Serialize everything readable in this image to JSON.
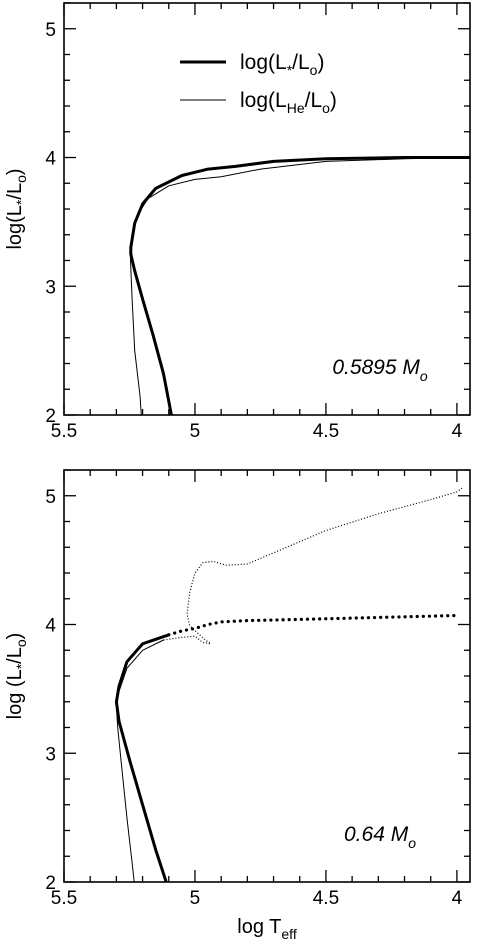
{
  "chart_data": [
    {
      "type": "line",
      "xlabel": "",
      "ylabel": {
        "main": "log(L",
        "sub1": "*",
        "mid": "/L",
        "sub2": "o",
        "end": ")"
      },
      "annotation": {
        "main": "0.5895 M",
        "sub": "o"
      },
      "xlim": [
        5.5,
        3.95
      ],
      "ylim": [
        2,
        5.2
      ],
      "x_ticks": [
        5.5,
        5,
        4.5,
        4
      ],
      "x_tick_labels": [
        "5.5",
        "5",
        "4.5",
        "4"
      ],
      "y_ticks": [
        2,
        3,
        4,
        5
      ],
      "y_tick_labels": [
        "2",
        "3",
        "4",
        "5"
      ],
      "legend": {
        "position": "top-center",
        "entries": [
          {
            "main": "log(L",
            "sub1": "*",
            "mid": "/L",
            "sub2": "o",
            "end": ")",
            "style": "thick"
          },
          {
            "main": "log(L",
            "sub1": "He",
            "mid": "/L",
            "sub2": "o",
            "end": ")",
            "style": "thin"
          }
        ]
      },
      "series": [
        {
          "name": "log(L*/Lo)",
          "style": "thick",
          "points": [
            [
              3.95,
              4.0
            ],
            [
              4.2,
              4.0
            ],
            [
              4.5,
              3.99
            ],
            [
              4.7,
              3.97
            ],
            [
              4.85,
              3.93
            ],
            [
              4.95,
              3.91
            ],
            [
              5.05,
              3.86
            ],
            [
              5.15,
              3.76
            ],
            [
              5.2,
              3.64
            ],
            [
              5.23,
              3.49
            ],
            [
              5.245,
              3.3
            ],
            [
              5.245,
              3.25
            ],
            [
              5.23,
              3.12
            ],
            [
              5.2,
              2.9
            ],
            [
              5.16,
              2.62
            ],
            [
              5.12,
              2.32
            ],
            [
              5.09,
              2.0
            ]
          ]
        },
        {
          "name": "log(LHe/Lo)",
          "style": "thin",
          "points": [
            [
              3.98,
              4.0
            ],
            [
              4.2,
              3.99
            ],
            [
              4.5,
              3.97
            ],
            [
              4.75,
              3.91
            ],
            [
              4.9,
              3.85
            ],
            [
              5.0,
              3.83
            ],
            [
              5.1,
              3.78
            ],
            [
              5.18,
              3.68
            ],
            [
              5.22,
              3.55
            ],
            [
              5.24,
              3.4
            ],
            [
              5.247,
              3.28
            ],
            [
              5.246,
              3.2
            ],
            [
              5.24,
              2.9
            ],
            [
              5.23,
              2.5
            ],
            [
              5.21,
              2.15
            ],
            [
              5.205,
              2.0
            ]
          ]
        }
      ]
    },
    {
      "type": "line",
      "xlabel": {
        "main": "log T",
        "sub": "eff"
      },
      "ylabel": {
        "main": "log (L",
        "sub1": "*",
        "mid": "/L",
        "sub2": "o",
        "end": ")"
      },
      "annotation": {
        "main": "0.64 M",
        "sub": "o"
      },
      "xlim": [
        5.5,
        3.95
      ],
      "ylim": [
        2,
        5.2
      ],
      "x_ticks": [
        5.5,
        5,
        4.5,
        4
      ],
      "x_tick_labels": [
        "5.5",
        "5",
        "4.5",
        "4"
      ],
      "y_ticks": [
        2,
        3,
        4,
        5
      ],
      "y_tick_labels": [
        "2",
        "3",
        "4",
        "5"
      ],
      "series": [
        {
          "name": "log(L*/Lo)",
          "style": "thick",
          "points": [
            [
              5.1,
              3.92
            ],
            [
              5.2,
              3.85
            ],
            [
              5.26,
              3.71
            ],
            [
              5.29,
              3.52
            ],
            [
              5.3,
              3.4
            ],
            [
              5.29,
              3.25
            ],
            [
              5.25,
              2.95
            ],
            [
              5.2,
              2.6
            ],
            [
              5.15,
              2.25
            ],
            [
              5.11,
              2.0
            ]
          ]
        },
        {
          "name": "log(L*/Lo)",
          "style": "dotted-thick",
          "points": [
            [
              5.1,
              3.92
            ],
            [
              5.05,
              3.95
            ],
            [
              5.0,
              3.97
            ],
            [
              4.95,
              4.0
            ],
            [
              4.9,
              4.02
            ],
            [
              4.8,
              4.03
            ],
            [
              4.6,
              4.04
            ],
            [
              4.4,
              4.05
            ],
            [
              4.2,
              4.06
            ],
            [
              4.0,
              4.07
            ]
          ]
        },
        {
          "name": "log(LHe/Lo)",
          "style": "thin",
          "points": [
            [
              5.12,
              3.88
            ],
            [
              5.2,
              3.8
            ],
            [
              5.26,
              3.66
            ],
            [
              5.29,
              3.48
            ],
            [
              5.3,
              3.36
            ],
            [
              5.295,
              3.2
            ],
            [
              5.28,
              2.9
            ],
            [
              5.26,
              2.5
            ],
            [
              5.24,
              2.15
            ],
            [
              5.232,
              2.0
            ]
          ]
        },
        {
          "name": "log(LHe/Lo)",
          "style": "dotted-thin",
          "points": [
            [
              5.12,
              3.88
            ],
            [
              5.05,
              3.9
            ],
            [
              5.0,
              3.91
            ],
            [
              4.97,
              3.86
            ],
            [
              4.94,
              3.85
            ],
            [
              4.96,
              3.88
            ],
            [
              5.02,
              3.99
            ],
            [
              5.03,
              4.08
            ],
            [
              5.02,
              4.25
            ],
            [
              5.0,
              4.4
            ],
            [
              4.97,
              4.48
            ],
            [
              4.93,
              4.49
            ],
            [
              4.88,
              4.46
            ],
            [
              4.8,
              4.47
            ],
            [
              4.65,
              4.6
            ],
            [
              4.5,
              4.73
            ],
            [
              4.3,
              4.86
            ],
            [
              4.1,
              4.97
            ],
            [
              4.0,
              5.03
            ],
            [
              3.98,
              5.06
            ]
          ]
        }
      ]
    }
  ]
}
